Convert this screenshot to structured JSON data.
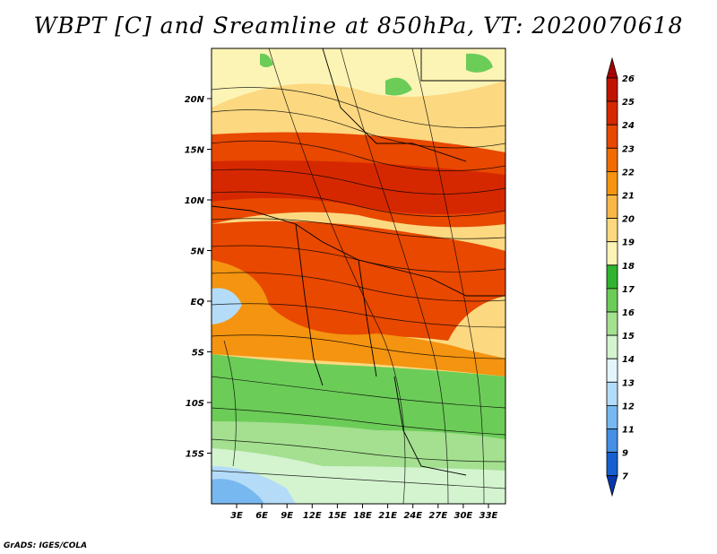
{
  "title": "WBPT [C] and Sreamline at 850hPa, VT: 2020070618",
  "credit": "GrADS: IGES/COLA",
  "map": {
    "lat_labels": [
      "20N",
      "15N",
      "10N",
      "5N",
      "EQ",
      "5S",
      "10S",
      "15S"
    ],
    "lon_labels": [
      "3E",
      "6E",
      "9E",
      "12E",
      "15E",
      "18E",
      "21E",
      "24E",
      "27E",
      "30E",
      "33E"
    ]
  },
  "colorbar": {
    "levels": [
      "26",
      "25",
      "24",
      "23",
      "22",
      "21",
      "20",
      "19",
      "18",
      "17",
      "16",
      "15",
      "14",
      "13",
      "12",
      "11",
      "9",
      "7"
    ],
    "colors": [
      "#a50000",
      "#c01400",
      "#d62800",
      "#e84800",
      "#f06c00",
      "#f49410",
      "#f8b848",
      "#fcd880",
      "#fcf4b4",
      "#30b430",
      "#6ccc58",
      "#a4e090",
      "#d4f4d0",
      "#e4f6fc",
      "#b4dcf8",
      "#78b8f0",
      "#4490e4",
      "#1860d0",
      "#0838b0"
    ]
  }
}
